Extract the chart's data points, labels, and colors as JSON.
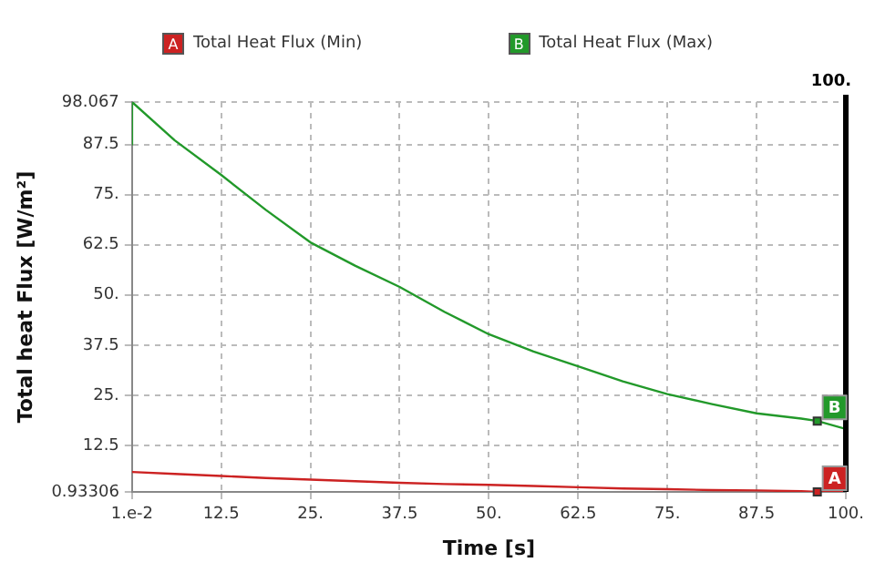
{
  "chart_data": {
    "type": "line",
    "xlabel": "Time [s]",
    "ylabel": "Total heat Flux [W/m²]",
    "x": [
      0.01,
      0.02,
      6,
      12.5,
      18.75,
      25,
      31.25,
      37.5,
      43.75,
      50,
      56.25,
      62.5,
      68.75,
      75,
      81.25,
      87.5,
      93.75,
      96,
      100
    ],
    "series": [
      {
        "name": "Total Heat Flux (Min)",
        "color": "#cc2222",
        "values": [
          5.9,
          5.9,
          5.4,
          4.9,
          4.4,
          4.0,
          3.6,
          3.2,
          2.9,
          2.7,
          2.4,
          2.1,
          1.8,
          1.6,
          1.4,
          1.3,
          1.1,
          0.93306,
          0.93306
        ]
      },
      {
        "name": "Total Heat Flux (Max)",
        "color": "#22992a",
        "values": [
          87.5,
          98.067,
          88.5,
          79.9,
          71.2,
          63.1,
          57.3,
          52,
          45.8,
          40.2,
          35.9,
          32.2,
          28.5,
          25.3,
          22.8,
          20.5,
          19.2,
          18.6,
          16.6
        ]
      }
    ],
    "xlim": [
      0.01,
      100
    ],
    "ylim": [
      0.93306,
      98.067
    ],
    "xticks": [
      {
        "value": 0.01,
        "label": "1.e-2"
      },
      12.5,
      {
        "value": 25,
        "label": "25."
      },
      37.5,
      {
        "value": 50,
        "label": "50."
      },
      62.5,
      {
        "value": 75,
        "label": "75."
      },
      87.5,
      {
        "value": 100,
        "label": "100."
      }
    ],
    "yticks": [
      {
        "value": 0.93306,
        "label": "0.93306"
      },
      12.5,
      {
        "value": 25,
        "label": "25."
      },
      37.5,
      {
        "value": 50,
        "label": "50."
      },
      62.5,
      {
        "value": 75,
        "label": "75."
      },
      87.5,
      {
        "value": 98.067,
        "label": "98.067"
      }
    ],
    "ref_lines": [
      {
        "axis": "x",
        "value": 100,
        "label": "100.",
        "color": "#000000"
      }
    ],
    "annotations": [
      {
        "text": "A",
        "x": 96,
        "y": 0.93306
      },
      {
        "text": "B",
        "x": 96,
        "y": 18.6
      }
    ],
    "grid": true,
    "legend": "top",
    "marker": "none",
    "line_style": "solid"
  }
}
